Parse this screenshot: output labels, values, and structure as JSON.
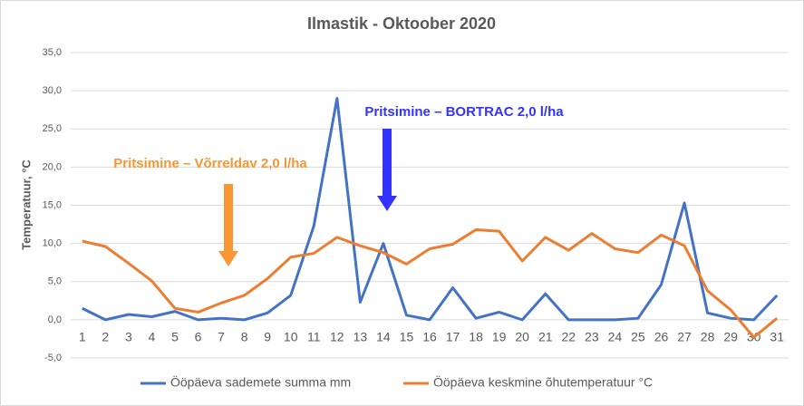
{
  "chart_data": {
    "type": "line",
    "title": "Ilmastik - Oktoober 2020",
    "y_label": "Temperatuur, °C",
    "categories": [
      "1",
      "2",
      "3",
      "4",
      "5",
      "6",
      "7",
      "8",
      "9",
      "10",
      "11",
      "12",
      "13",
      "14",
      "15",
      "16",
      "17",
      "18",
      "19",
      "20",
      "21",
      "22",
      "23",
      "24",
      "25",
      "26",
      "27",
      "28",
      "29",
      "30",
      "31"
    ],
    "series": [
      {
        "name": "Ööpäeva sademete summa mm",
        "color": "#4472c4",
        "values": [
          1.5,
          0,
          0.7,
          0.4,
          1.1,
          0,
          0.2,
          0,
          0.9,
          3.2,
          12.3,
          29,
          2.3,
          10,
          0.6,
          0,
          4.2,
          0.2,
          1.0,
          0,
          3.4,
          0,
          0,
          0,
          0.2,
          4.6,
          15.3,
          0.9,
          0.2,
          0,
          3.2
        ]
      },
      {
        "name": "Ööpäeva keskmine õhutemperatuur °C",
        "color": "#ed7d31",
        "values": [
          10.3,
          9.6,
          7.4,
          5.1,
          1.5,
          1.0,
          2.2,
          3.2,
          5.4,
          8.2,
          8.7,
          10.8,
          9.7,
          8.8,
          7.3,
          9.3,
          9.9,
          11.8,
          11.6,
          7.7,
          10.8,
          9.1,
          11.3,
          9.3,
          8.8,
          11.1,
          9.7,
          3.8,
          1.3,
          -2.3,
          0.2
        ]
      }
    ],
    "ylim": [
      -5,
      35
    ],
    "yticks": [
      {
        "value": -5,
        "label": "-5,0"
      },
      {
        "value": 0,
        "label": "0,0"
      },
      {
        "value": 5,
        "label": "5,0"
      },
      {
        "value": 10,
        "label": "10,0"
      },
      {
        "value": 15,
        "label": "15,0"
      },
      {
        "value": 20,
        "label": "20,0"
      },
      {
        "value": 25,
        "label": "25,0"
      },
      {
        "value": 30,
        "label": "30,0"
      },
      {
        "value": 35,
        "label": "35,0"
      }
    ],
    "grid": true,
    "legend": "bottom",
    "annotations": [
      {
        "text": "Pritsimine – Võrreldav 2,0 l/ha",
        "color": "#f79633"
      },
      {
        "text": "Pritsimine – BORTRAC 2,0 l/ha",
        "color": "#3333ff"
      }
    ]
  }
}
